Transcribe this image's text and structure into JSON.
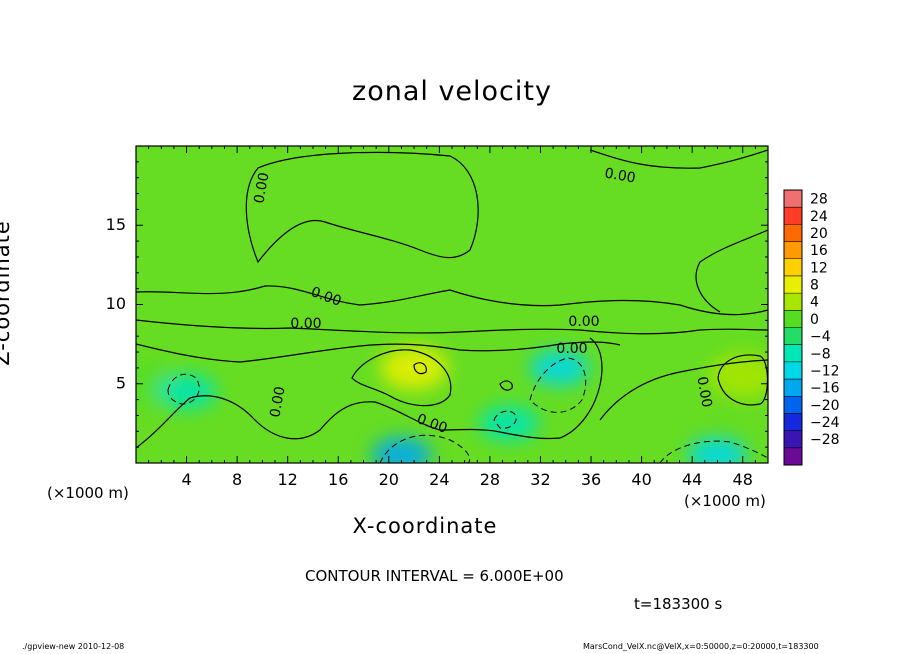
{
  "chart_data": {
    "type": "heatmap",
    "title": "zonal velocity",
    "xlabel": "X-coordinate",
    "ylabel": "Z-coordinate",
    "x_unit": "(×1000 m)",
    "xlim": [
      0,
      50
    ],
    "ylim": [
      0,
      20
    ],
    "x_ticks": [
      4,
      8,
      12,
      16,
      20,
      24,
      28,
      32,
      36,
      40,
      44,
      48
    ],
    "y_ticks": [
      5,
      10,
      15
    ],
    "colorbar": {
      "labels": [
        "28",
        "24",
        "20",
        "16",
        "12",
        "8",
        "4",
        "0",
        "-4",
        "-8",
        "-12",
        "-16",
        "-20",
        "-24",
        "-28"
      ],
      "levels": [
        28,
        24,
        20,
        16,
        12,
        8,
        4,
        0,
        -4,
        -8,
        -12,
        -16,
        -20,
        -24,
        -28
      ],
      "colors": [
        "#f07070",
        "#ff3c28",
        "#ff6a00",
        "#ff9a00",
        "#ffd000",
        "#e8f000",
        "#a8e600",
        "#55dd22",
        "#22dd66",
        "#00e6b4",
        "#00d8e6",
        "#00a8f0",
        "#0064f0",
        "#1428dc",
        "#3c14b4",
        "#6a0a96"
      ]
    },
    "contour_labels": [
      "0.00",
      "0.00",
      "0.00",
      "0.00",
      "0.00",
      "0.00",
      "0.00",
      "0.00",
      "0.00"
    ],
    "contour_interval": "CONTOUR INTERVAL = 6.000E+00",
    "time": "t=183300 s",
    "features": [
      {
        "name": "positive-core",
        "x": 22,
        "z": 6,
        "value": 9
      },
      {
        "name": "positive-core",
        "x": 48,
        "z": 5.5,
        "value": 6
      },
      {
        "name": "positive-core",
        "x": 0.5,
        "z": 5,
        "value": 4
      },
      {
        "name": "negative-core",
        "x": 33.5,
        "z": 6,
        "value": -10
      },
      {
        "name": "negative-core",
        "x": 4,
        "z": 4.5,
        "value": -6
      },
      {
        "name": "negative-core",
        "x": 21,
        "z": 0.5,
        "value": -12
      },
      {
        "name": "negative-core",
        "x": 46,
        "z": 0.5,
        "value": -10
      },
      {
        "name": "negative-core",
        "x": 29.5,
        "z": 2.5,
        "value": -6
      }
    ]
  },
  "footer": {
    "program": "./gpview-new   2010-12-08",
    "source": "MarsCond_VelX.nc@VelX,x=0:50000,z=0:20000,t=183300"
  }
}
